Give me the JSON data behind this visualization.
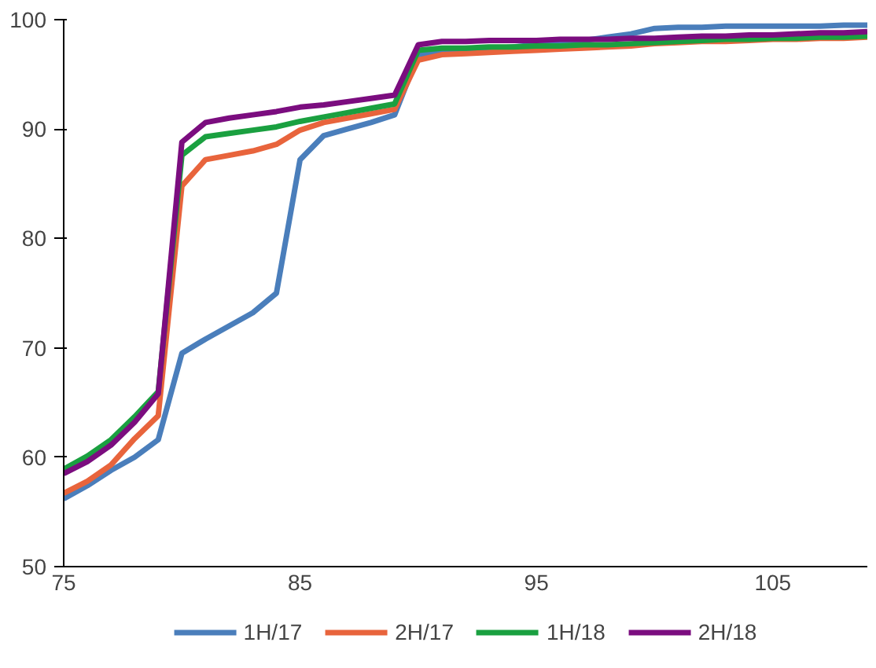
{
  "chart_data": {
    "type": "line",
    "x": [
      75,
      76,
      77,
      78,
      79,
      80,
      81,
      82,
      83,
      84,
      85,
      86,
      87,
      88,
      89,
      90,
      91,
      92,
      93,
      94,
      95,
      96,
      97,
      98,
      99,
      100,
      101,
      102,
      103,
      104,
      105,
      106,
      107,
      108,
      109
    ],
    "series": [
      {
        "name": "1H/17",
        "color": "#4a7ebb",
        "values": [
          56.2,
          57.4,
          58.8,
          60.0,
          61.6,
          69.5,
          70.8,
          72.0,
          73.2,
          75.0,
          87.2,
          89.4,
          90.0,
          90.6,
          91.3,
          96.8,
          97.1,
          97.2,
          97.3,
          97.5,
          97.7,
          97.9,
          98.1,
          98.4,
          98.7,
          99.2,
          99.3,
          99.3,
          99.4,
          99.4,
          99.4,
          99.4,
          99.4,
          99.5,
          99.5
        ]
      },
      {
        "name": "2H/17",
        "color": "#e8643c",
        "values": [
          56.7,
          57.8,
          59.3,
          61.7,
          63.8,
          84.8,
          87.2,
          87.6,
          88.0,
          88.6,
          89.9,
          90.6,
          91.0,
          91.4,
          91.8,
          96.3,
          96.8,
          96.9,
          97.0,
          97.1,
          97.2,
          97.3,
          97.4,
          97.5,
          97.6,
          97.8,
          97.9,
          98.0,
          98.0,
          98.1,
          98.2,
          98.2,
          98.3,
          98.3,
          98.4
        ]
      },
      {
        "name": "1H/18",
        "color": "#1aa040",
        "values": [
          58.9,
          60.1,
          61.6,
          63.7,
          66.0,
          87.6,
          89.3,
          89.6,
          89.9,
          90.2,
          90.7,
          91.1,
          91.5,
          91.9,
          92.3,
          97.2,
          97.4,
          97.4,
          97.5,
          97.5,
          97.6,
          97.6,
          97.7,
          97.7,
          97.8,
          97.9,
          98.0,
          98.1,
          98.2,
          98.2,
          98.3,
          98.3,
          98.4,
          98.4,
          98.5
        ]
      },
      {
        "name": "2H/18",
        "color": "#7b0d7f",
        "values": [
          58.5,
          59.6,
          61.1,
          63.2,
          65.8,
          88.8,
          90.6,
          91.0,
          91.3,
          91.6,
          92.0,
          92.2,
          92.5,
          92.8,
          93.1,
          97.7,
          98.0,
          98.0,
          98.1,
          98.1,
          98.1,
          98.2,
          98.2,
          98.2,
          98.3,
          98.3,
          98.4,
          98.5,
          98.5,
          98.6,
          98.6,
          98.7,
          98.8,
          98.8,
          98.9
        ]
      }
    ],
    "xlim": [
      75,
      109
    ],
    "ylim": [
      50,
      100
    ],
    "xticks": [
      75,
      85,
      95,
      105
    ],
    "yticks": [
      50,
      60,
      70,
      80,
      90,
      100
    ],
    "grid": false,
    "legend": "bottom",
    "marker": "none",
    "line_style": "solid"
  }
}
